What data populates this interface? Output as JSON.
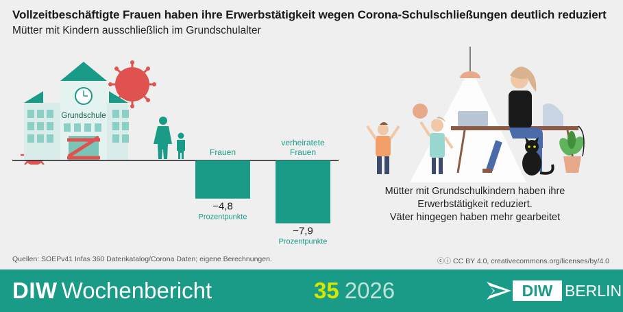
{
  "title": "Vollzeitbeschäftigte Frauen haben ihre Erwerbstätigkeit wegen Corona-Schulschließungen deutlich reduziert",
  "subtitle": "Mütter mit Kindern ausschließlich im Grundschulalter",
  "school_label": "Grundschule",
  "chart_data": {
    "type": "bar",
    "categories": [
      "Frauen",
      "verheiratete Frauen"
    ],
    "values": [
      -4.8,
      -7.9
    ],
    "value_labels": [
      "−4,8",
      "−7,9"
    ],
    "unit": "Prozentpunkte",
    "ylim": [
      -7.9,
      0
    ],
    "grid": false,
    "color": "#1a9b87"
  },
  "caption_lines": [
    "Mütter mit Grundschulkindern haben ihre",
    "Erwerbstätigkeit reduziert.",
    "Väter hingegen haben mehr gearbeitet"
  ],
  "sources": "Quellen: SOEPv41 Infas 360 Datenkatalog/Corona Daten; eigene Berechnungen.",
  "license": "CC BY 4.0, creativecommons.org/licenses/by/4.0",
  "footer": {
    "brand_bold": "DIW",
    "brand_rest": "Wochenbericht",
    "issue_number": "35",
    "issue_year": "2026",
    "logo_diw": "DIW",
    "logo_berlin": "BERLIN"
  },
  "colors": {
    "accent": "#1a9b87",
    "virus": "#e0524f",
    "highlight": "#d6e600",
    "background": "#efefef"
  }
}
